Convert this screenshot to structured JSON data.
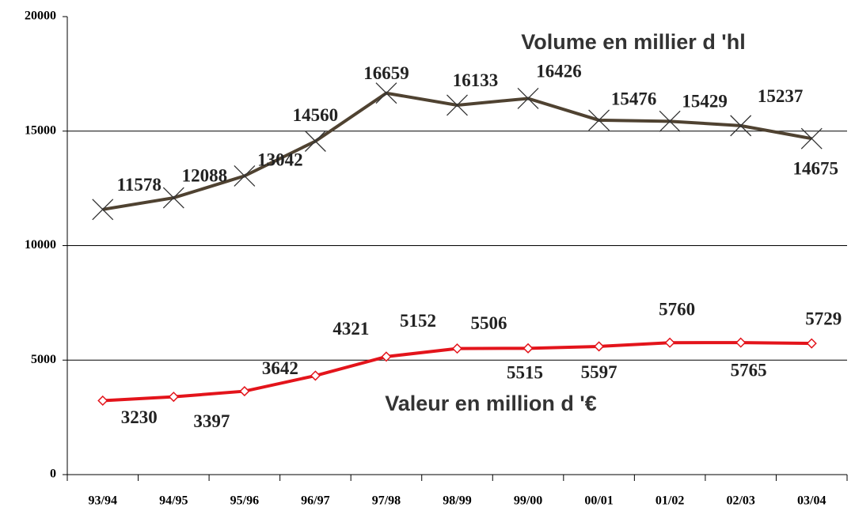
{
  "chart_data": {
    "type": "line",
    "categories": [
      "93/94",
      "94/95",
      "95/96",
      "96/97",
      "97/98",
      "98/99",
      "99/00",
      "00/01",
      "01/02",
      "02/03",
      "03/04"
    ],
    "series": [
      {
        "name": "Volume en millier d 'hl",
        "color": "#4f4231",
        "marker": "x",
        "values": [
          11578,
          12088,
          13042,
          14560,
          16659,
          16133,
          16426,
          15476,
          15429,
          15237,
          14675
        ]
      },
      {
        "name": "Valeur en million d '€",
        "color": "#e3141b",
        "marker": "diamond",
        "values": [
          3230,
          3397,
          3642,
          4321,
          5152,
          5506,
          5515,
          5597,
          5760,
          5765,
          5729
        ]
      }
    ],
    "ylim": [
      0,
      20000
    ],
    "yticks": [
      0,
      5000,
      10000,
      15000,
      20000
    ],
    "grid": true
  }
}
